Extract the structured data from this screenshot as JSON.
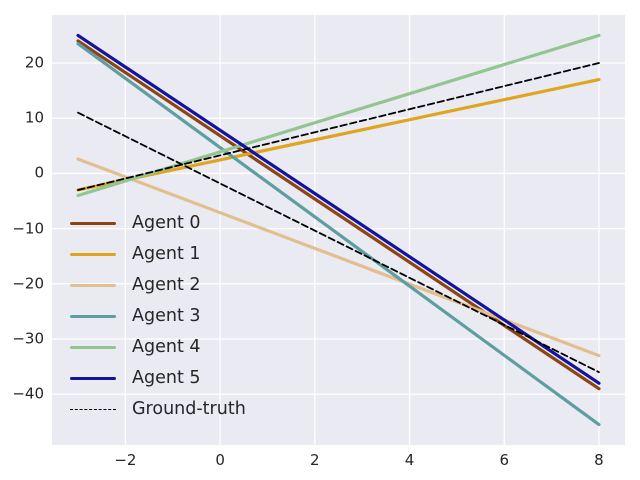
{
  "figure": {
    "background": "#ffffff",
    "plot_background": "#eaeaf2",
    "grid_color": "#ffffff",
    "text_color": "#262626"
  },
  "chart_data": {
    "type": "line",
    "title": "",
    "xlabel": "",
    "ylabel": "",
    "grid": true,
    "legend_position": "lower left",
    "xlim": [
      -3.55,
      8.55
    ],
    "ylim": [
      -49.2,
      28.7
    ],
    "xticks": [
      -2,
      0,
      2,
      4,
      6,
      8
    ],
    "xtick_labels": [
      "−2",
      "0",
      "2",
      "4",
      "6",
      "8"
    ],
    "yticks": [
      -40,
      -30,
      -20,
      -10,
      0,
      10,
      20
    ],
    "ytick_labels": [
      "−40",
      "−30",
      "−20",
      "−10",
      "0",
      "10",
      "20"
    ],
    "series": [
      {
        "name": "Agent 0",
        "color": "#8b4513",
        "style": "solid",
        "linewidth": 3.2,
        "x": [
          -3,
          8
        ],
        "y": [
          24,
          -39
        ],
        "show_in_legend": true
      },
      {
        "name": "Agent 1",
        "color": "#dfa51f",
        "style": "solid",
        "linewidth": 3.2,
        "x": [
          -3,
          8
        ],
        "y": [
          -3,
          17
        ],
        "show_in_legend": true
      },
      {
        "name": "Agent 2",
        "color": "#e3be8f",
        "style": "solid",
        "linewidth": 3.2,
        "x": [
          -3,
          8
        ],
        "y": [
          2.6,
          -33
        ],
        "show_in_legend": true
      },
      {
        "name": "Agent 3",
        "color": "#5f9ea0",
        "style": "solid",
        "linewidth": 3.2,
        "x": [
          -3,
          8
        ],
        "y": [
          23.5,
          -45.5
        ],
        "show_in_legend": true
      },
      {
        "name": "Agent 4",
        "color": "#92c591",
        "style": "solid",
        "linewidth": 3.2,
        "x": [
          -3,
          8
        ],
        "y": [
          -4,
          25
        ],
        "show_in_legend": true
      },
      {
        "name": "Agent 5",
        "color": "#13139c",
        "style": "solid",
        "linewidth": 3.2,
        "x": [
          -3,
          8
        ],
        "y": [
          25,
          -38
        ],
        "show_in_legend": true
      },
      {
        "name": "Ground-truth",
        "color": "#000000",
        "style": "dashed",
        "linewidth": 1.8,
        "x": [
          -3,
          8
        ],
        "y": [
          11,
          -36
        ],
        "show_in_legend": true
      },
      {
        "name": "Ground-truth",
        "color": "#000000",
        "style": "dashed",
        "linewidth": 1.8,
        "x": [
          -3,
          8
        ],
        "y": [
          -3,
          20
        ],
        "show_in_legend": false
      }
    ]
  }
}
